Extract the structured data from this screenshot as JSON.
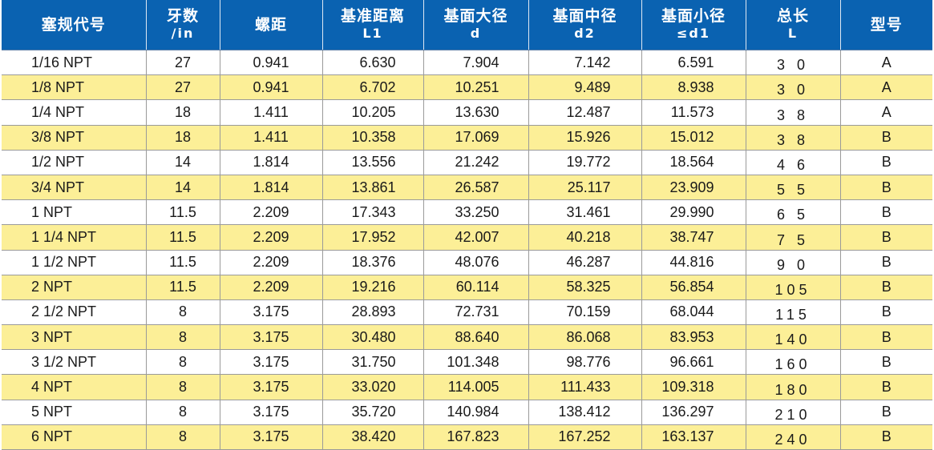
{
  "headers": [
    {
      "line1": "塞规代号",
      "line2": ""
    },
    {
      "line1": "牙数",
      "line2": "/in"
    },
    {
      "line1": "螺距",
      "line2": ""
    },
    {
      "line1": "基准距离",
      "line2": "L1"
    },
    {
      "line1": "基面大径",
      "line2": "d"
    },
    {
      "line1": "基面中径",
      "line2": "d2"
    },
    {
      "line1": "基面小径",
      "line2": "≤d1"
    },
    {
      "line1": "总长",
      "line2": "L"
    },
    {
      "line1": "型号",
      "line2": ""
    }
  ],
  "rows": [
    [
      "1/16 NPT",
      "27",
      "0.941",
      "6.630",
      "7.904",
      "7.142",
      "6.591",
      "3 0",
      "A"
    ],
    [
      "1/8 NPT",
      "27",
      "0.941",
      "6.702",
      "10.251",
      "9.489",
      "8.938",
      "3 0",
      "A"
    ],
    [
      "1/4 NPT",
      "18",
      "1.411",
      "10.205",
      "13.630",
      "12.487",
      "11.573",
      "3 8",
      "A"
    ],
    [
      "3/8 NPT",
      "18",
      "1.411",
      "10.358",
      "17.069",
      "15.926",
      "15.012",
      "3 8",
      "B"
    ],
    [
      "1/2 NPT",
      "14",
      "1.814",
      "13.556",
      "21.242",
      "19.772",
      "18.564",
      "4 6",
      "B"
    ],
    [
      "3/4 NPT",
      "14",
      "1.814",
      "13.861",
      "26.587",
      "25.117",
      "23.909",
      "5 5",
      "B"
    ],
    [
      "1 NPT",
      "11.5",
      "2.209",
      "17.343",
      "33.250",
      "31.461",
      "29.990",
      "6 5",
      "B"
    ],
    [
      "1 1/4 NPT",
      "11.5",
      "2.209",
      "17.952",
      "42.007",
      "40.218",
      "38.747",
      "7 5",
      "B"
    ],
    [
      "1 1/2 NPT",
      "11.5",
      "2.209",
      "18.376",
      "48.076",
      "46.287",
      "44.816",
      "9 0",
      "B"
    ],
    [
      "2 NPT",
      "11.5",
      "2.209",
      "19.216",
      "60.114",
      "58.325",
      "56.854",
      "105",
      "B"
    ],
    [
      "2 1/2 NPT",
      "8",
      "3.175",
      "28.893",
      "72.731",
      "70.159",
      "68.044",
      "115",
      "B"
    ],
    [
      "3 NPT",
      "8",
      "3.175",
      "30.480",
      "88.640",
      "86.068",
      "83.953",
      "140",
      "B"
    ],
    [
      "3 1/2 NPT",
      "8",
      "3.175",
      "31.750",
      "101.348",
      "98.776",
      "96.661",
      "160",
      "B"
    ],
    [
      "4 NPT",
      "8",
      "3.175",
      "33.020",
      "114.005",
      "111.433",
      "109.318",
      "180",
      "B"
    ],
    [
      "5 NPT",
      "8",
      "3.175",
      "35.720",
      "140.984",
      "138.412",
      "136.297",
      "210",
      "B"
    ],
    [
      "6 NPT",
      "8",
      "3.175",
      "38.420",
      "167.823",
      "167.252",
      "163.137",
      "240",
      "B"
    ]
  ],
  "colors": {
    "header_bg": "#0a62b1",
    "header_text": "#ffffff",
    "row_highlight": "#fcef97",
    "row_plain": "#ffffff",
    "grid_line": "#9a9a9a"
  }
}
